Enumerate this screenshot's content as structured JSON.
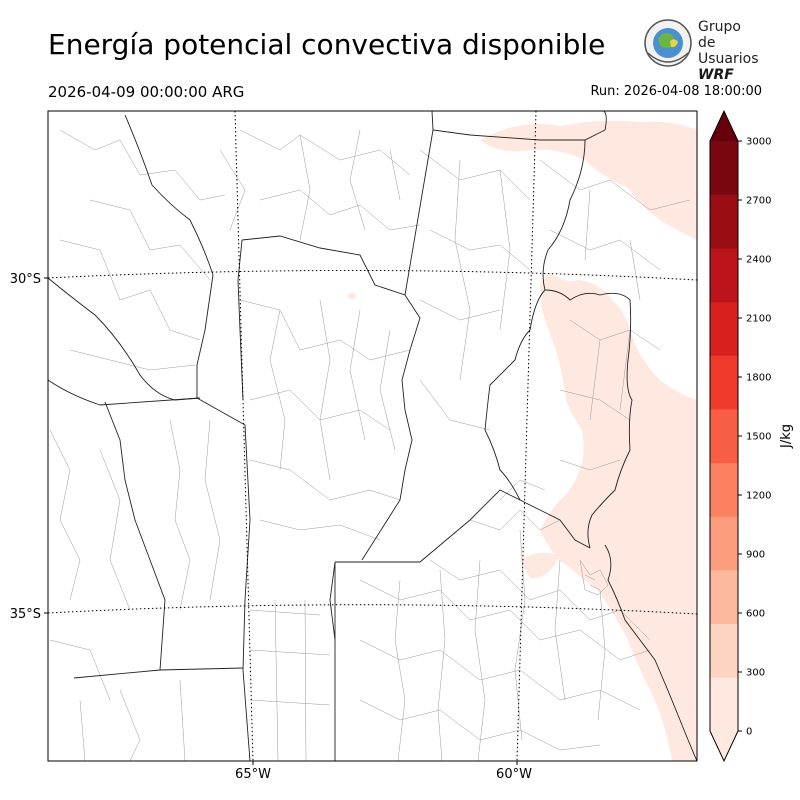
{
  "title": "Energía potencial convectiva disponible",
  "valid_time": "2026-04-09 00:00:00 ARG",
  "run_time": "Run: 2026-04-08 18:00:00",
  "logo": {
    "line1": "Grupo de",
    "line2": "Usuarios",
    "line3": "WRF"
  },
  "map": {
    "lat_labels": [
      "30°S",
      "35°S"
    ],
    "lon_labels": [
      "65°W",
      "60°W"
    ]
  },
  "colorbar": {
    "label": "J/kg",
    "ticks": [
      "0",
      "300",
      "600",
      "900",
      "1200",
      "1500",
      "1800",
      "2100",
      "2400",
      "2700",
      "3000"
    ],
    "colors": [
      "#fee8df",
      "#fdd4c2",
      "#fcb99d",
      "#fc9d7f",
      "#fb8161",
      "#f85e43",
      "#ef3a2c",
      "#d8211f",
      "#bc141a",
      "#9b0d14",
      "#7a0610"
    ],
    "extend_color": "#67000d"
  }
}
